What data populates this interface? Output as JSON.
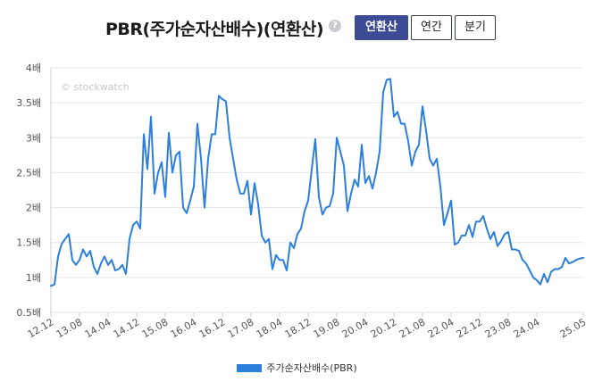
{
  "header": {
    "title": "PBR(주가순자산배수)(연환산)",
    "help_icon": "?",
    "tabs": [
      {
        "label": "연환산",
        "active": true
      },
      {
        "label": "연간",
        "active": false
      },
      {
        "label": "분기",
        "active": false
      }
    ]
  },
  "watermark": "© stockwatch",
  "colors": {
    "line": "#2d7fdc",
    "tab_active": "#3d4b94",
    "grid": "#e6e6e6"
  },
  "chart_data": {
    "type": "line",
    "title": "PBR(주가순자산배수)(연환산)",
    "y_ticks": [
      "0.5배",
      "1배",
      "1.5배",
      "2배",
      "2.5배",
      "3배",
      "3.5배",
      "4배"
    ],
    "y_tick_values": [
      0.5,
      1,
      1.5,
      2,
      2.5,
      3,
      3.5,
      4
    ],
    "ylim": [
      0.5,
      4
    ],
    "x_ticks": [
      "12.12",
      "13.08",
      "14.04",
      "14.12",
      "15.08",
      "16.04",
      "16.12",
      "17.08",
      "18.04",
      "18.12",
      "19.08",
      "20.04",
      "20.12",
      "21.08",
      "22.04",
      "22.12",
      "23.08",
      "24.04",
      "25.05"
    ],
    "x_tick_months": [
      0,
      8,
      16,
      24,
      32,
      40,
      48,
      56,
      64,
      72,
      80,
      88,
      96,
      104,
      112,
      120,
      128,
      136,
      149
    ],
    "xlim_months": [
      0,
      149
    ],
    "grid": "horizontal",
    "legend_position": "bottom",
    "series": [
      {
        "name": "주가순자산배수(PBR)",
        "months": [
          0,
          1,
          2,
          3,
          4,
          5,
          6,
          7,
          8,
          9,
          10,
          11,
          12,
          13,
          14,
          15,
          16,
          17,
          18,
          19,
          20,
          21,
          22,
          23,
          24,
          25,
          26,
          27,
          28,
          29,
          30,
          31,
          32,
          33,
          34,
          35,
          36,
          37,
          38,
          39,
          40,
          41,
          42,
          43,
          44,
          45,
          46,
          47,
          48,
          49,
          50,
          51,
          52,
          53,
          54,
          55,
          56,
          57,
          58,
          59,
          60,
          61,
          62,
          63,
          64,
          65,
          66,
          67,
          68,
          69,
          70,
          71,
          72,
          73,
          74,
          75,
          76,
          77,
          78,
          79,
          80,
          81,
          82,
          83,
          84,
          85,
          86,
          87,
          88,
          89,
          90,
          91,
          92,
          93,
          94,
          95,
          96,
          97,
          98,
          99,
          100,
          101,
          102,
          103,
          104,
          105,
          106,
          107,
          108,
          109,
          110,
          111,
          112,
          113,
          114,
          115,
          116,
          117,
          118,
          119,
          120,
          121,
          122,
          123,
          124,
          125,
          126,
          127,
          128,
          129,
          130,
          131,
          132,
          133,
          134,
          135,
          136,
          137,
          138,
          139,
          140,
          141,
          142,
          143,
          144,
          145,
          146,
          147,
          148,
          149
        ],
        "values": [
          0.88,
          0.9,
          1.3,
          1.48,
          1.55,
          1.62,
          1.25,
          1.18,
          1.25,
          1.4,
          1.3,
          1.38,
          1.15,
          1.05,
          1.2,
          1.3,
          1.18,
          1.25,
          1.1,
          1.12,
          1.18,
          1.05,
          1.55,
          1.75,
          1.8,
          1.7,
          3.05,
          2.55,
          3.3,
          2.2,
          2.5,
          2.65,
          2.15,
          3.07,
          2.5,
          2.75,
          2.8,
          2.0,
          1.92,
          2.1,
          2.3,
          3.2,
          2.7,
          2.0,
          2.7,
          3.05,
          3.05,
          3.6,
          3.55,
          3.52,
          3.0,
          2.7,
          2.4,
          2.2,
          2.2,
          2.38,
          1.9,
          2.35,
          2.05,
          1.6,
          1.5,
          1.55,
          1.12,
          1.32,
          1.25,
          1.25,
          1.1,
          1.5,
          1.42,
          1.62,
          1.7,
          1.95,
          2.1,
          2.55,
          2.98,
          2.15,
          1.9,
          2.0,
          2.02,
          2.2,
          3.0,
          2.8,
          2.6,
          1.95,
          2.2,
          2.4,
          2.3,
          2.9,
          2.35,
          2.45,
          2.27,
          2.5,
          2.8,
          3.65,
          3.83,
          3.84,
          3.3,
          3.37,
          3.2,
          3.2,
          2.95,
          2.6,
          2.8,
          2.9,
          3.45,
          3.1,
          2.7,
          2.6,
          2.7,
          2.3,
          1.75,
          1.92,
          2.1,
          1.47,
          1.5,
          1.6,
          1.6,
          1.75,
          1.58,
          1.8,
          1.8,
          1.88,
          1.7,
          1.55,
          1.65,
          1.45,
          1.52,
          1.62,
          1.65,
          1.4,
          1.4,
          1.38,
          1.25,
          1.2,
          1.1,
          1.0,
          0.96,
          0.9,
          1.05,
          0.93,
          1.08,
          1.12,
          1.12,
          1.15,
          1.28,
          1.2,
          1.22,
          1.25,
          1.27,
          1.28
        ]
      }
    ]
  }
}
